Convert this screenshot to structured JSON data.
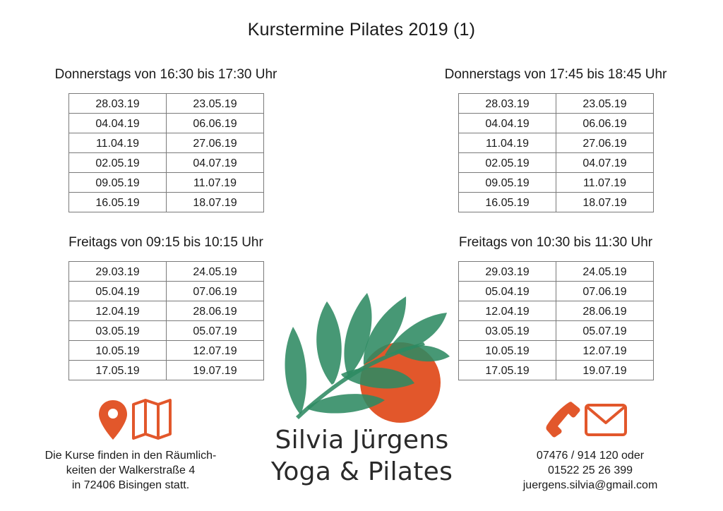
{
  "title": "Kurstermine Pilates 2019 (1)",
  "blocks": [
    {
      "heading": "Donnerstags von 16:30 bis 17:30 Uhr",
      "rows": [
        [
          "28.03.19",
          "23.05.19"
        ],
        [
          "04.04.19",
          "06.06.19"
        ],
        [
          "11.04.19",
          "27.06.19"
        ],
        [
          "02.05.19",
          "04.07.19"
        ],
        [
          "09.05.19",
          "11.07.19"
        ],
        [
          "16.05.19",
          "18.07.19"
        ]
      ]
    },
    {
      "heading": "Donnerstags von 17:45 bis 18:45 Uhr",
      "rows": [
        [
          "28.03.19",
          "23.05.19"
        ],
        [
          "04.04.19",
          "06.06.19"
        ],
        [
          "11.04.19",
          "27.06.19"
        ],
        [
          "02.05.19",
          "04.07.19"
        ],
        [
          "09.05.19",
          "11.07.19"
        ],
        [
          "16.05.19",
          "18.07.19"
        ]
      ]
    },
    {
      "heading": "Freitags von 09:15 bis 10:15 Uhr",
      "rows": [
        [
          "29.03.19",
          "24.05.19"
        ],
        [
          "05.04.19",
          "07.06.19"
        ],
        [
          "12.04.19",
          "28.06.19"
        ],
        [
          "03.05.19",
          "05.07.19"
        ],
        [
          "10.05.19",
          "12.07.19"
        ],
        [
          "17.05.19",
          "19.07.19"
        ]
      ]
    },
    {
      "heading": "Freitags von 10:30 bis 11:30 Uhr",
      "rows": [
        [
          "29.03.19",
          "24.05.19"
        ],
        [
          "05.04.19",
          "07.06.19"
        ],
        [
          "12.04.19",
          "28.06.19"
        ],
        [
          "03.05.19",
          "05.07.19"
        ],
        [
          "10.05.19",
          "12.07.19"
        ],
        [
          "17.05.19",
          "19.07.19"
        ]
      ]
    }
  ],
  "brand": {
    "line1": "Silvia Jürgens",
    "line2": "Yoga & Pilates"
  },
  "location": {
    "icons": [
      "map-pin-icon",
      "map-icon"
    ],
    "line1": "Die Kurse finden in den Räumlich-",
    "line2": "keiten der Walkerstraße 4",
    "line3": "in 72406 Bisingen statt."
  },
  "contact": {
    "icons": [
      "phone-icon",
      "envelope-icon"
    ],
    "phone_line": "07476 / 914 120 oder",
    "mobile_line": "01522 25 26 399",
    "email": "juergens.silvia@gmail.com"
  },
  "colors": {
    "accent": "#e2572b",
    "leaf": "#2e8a62",
    "text": "#1a1a1a",
    "table_border": "#7a7a7a"
  }
}
